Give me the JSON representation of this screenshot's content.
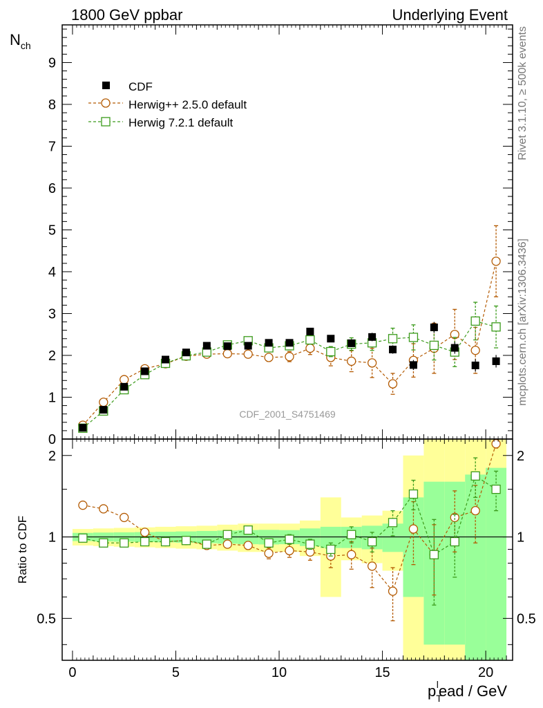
{
  "header": {
    "left_title": "1800 GeV ppbar",
    "right_title": "Underlying Event"
  },
  "side_labels": {
    "rivet": "Rivet 3.1.10, ≥ 500k events",
    "mcplots": "mcplots.cern.ch [arXiv:1306.3436]"
  },
  "watermark": "CDF_2001_S4751469",
  "axes": {
    "top_ylabel_main": "N",
    "top_ylabel_sub": "ch",
    "ratio_ylabel": "Ratio to CDF",
    "xlabel_p": "p",
    "xlabel_sub": "T",
    "xlabel_sup": "l",
    "xlabel_rest": "ead / GeV"
  },
  "colors": {
    "data": "#000000",
    "herwigpp": "#b35900",
    "herwig7": "#3a9a1a",
    "band_green": "#99ff99",
    "band_yellow": "#ffff99"
  },
  "chart_data": [
    {
      "type": "scatter",
      "panel": "main",
      "title": "Underlying Event",
      "xlabel": "pT lead / GeV",
      "ylabel": "Nch",
      "xlim": [
        -0.5,
        21.3
      ],
      "ylim": [
        0,
        9.9
      ],
      "xticks": [
        0,
        5,
        10,
        15,
        20
      ],
      "yticks": [
        1,
        2,
        3,
        4,
        5,
        6,
        7,
        8,
        9
      ],
      "x": [
        0.5,
        1.5,
        2.5,
        3.5,
        4.5,
        5.5,
        6.5,
        7.5,
        8.5,
        9.5,
        10.5,
        11.5,
        12.5,
        13.5,
        14.5,
        15.5,
        16.5,
        17.5,
        18.5,
        19.5,
        20.5
      ],
      "legend_position": "top-left",
      "series": [
        {
          "name": "CDF",
          "marker": "square-filled",
          "values": [
            0.27,
            0.7,
            1.25,
            1.62,
            1.9,
            2.07,
            2.23,
            2.22,
            2.23,
            2.3,
            2.3,
            2.57,
            2.4,
            2.29,
            2.44,
            2.14,
            1.77,
            2.67,
            2.18,
            1.76,
            1.86
          ],
          "errors": [
            0.02,
            0.04,
            0.05,
            0.05,
            0.05,
            0.05,
            0.06,
            0.06,
            0.06,
            0.07,
            0.07,
            0.08,
            0.08,
            0.09,
            0.1,
            0.1,
            0.12,
            0.13,
            0.14,
            0.15,
            0.15
          ]
        },
        {
          "name": "Herwig++ 2.5.0 default",
          "marker": "circle-open",
          "values": [
            0.33,
            0.88,
            1.42,
            1.68,
            1.8,
            1.98,
            2.03,
            2.04,
            2.03,
            1.95,
            1.97,
            2.17,
            1.95,
            1.86,
            1.82,
            1.32,
            1.88,
            2.17,
            2.5,
            2.12,
            4.25
          ],
          "errors": [
            0.01,
            0.02,
            0.03,
            0.04,
            0.05,
            0.05,
            0.06,
            0.07,
            0.08,
            0.09,
            0.12,
            0.15,
            0.2,
            0.25,
            0.35,
            0.25,
            0.4,
            0.6,
            0.6,
            0.55,
            0.85
          ]
        },
        {
          "name": "Herwig 7.2.1 default",
          "marker": "square-open",
          "values": [
            0.26,
            0.67,
            1.18,
            1.54,
            1.81,
            1.99,
            2.08,
            2.25,
            2.35,
            2.18,
            2.23,
            2.37,
            2.09,
            2.27,
            2.3,
            2.4,
            2.43,
            2.24,
            2.08,
            2.82,
            2.68
          ],
          "errors": [
            0.01,
            0.02,
            0.03,
            0.04,
            0.05,
            0.05,
            0.06,
            0.07,
            0.08,
            0.09,
            0.1,
            0.1,
            0.12,
            0.15,
            0.18,
            0.25,
            0.3,
            0.35,
            0.35,
            0.45,
            0.5
          ]
        }
      ]
    },
    {
      "type": "scatter",
      "panel": "ratio",
      "ylabel": "Ratio to CDF",
      "xlabel": "pT lead / GeV",
      "xlim": [
        -0.5,
        21.3
      ],
      "ylim": [
        0.35,
        2.3
      ],
      "yscale": "log",
      "xticks": [
        0,
        5,
        10,
        15,
        20
      ],
      "yticks": [
        0.5,
        1,
        2
      ],
      "ytick_labels": [
        "0.5",
        "1",
        "2"
      ],
      "reference_line": 1,
      "x": [
        0.5,
        1.5,
        2.5,
        3.5,
        4.5,
        5.5,
        6.5,
        7.5,
        8.5,
        9.5,
        10.5,
        11.5,
        12.5,
        13.5,
        14.5,
        15.5,
        16.5,
        17.5,
        18.5,
        19.5,
        20.5
      ],
      "bands": {
        "green_half_width": [
          0.035,
          0.038,
          0.04,
          0.042,
          0.045,
          0.048,
          0.052,
          0.056,
          0.06,
          0.062,
          0.06,
          0.075,
          0.09,
          0.09,
          0.1,
          0.12,
          0.4,
          0.6,
          0.6,
          0.7,
          0.8
        ],
        "yellow_half_width": [
          0.07,
          0.075,
          0.08,
          0.085,
          0.09,
          0.095,
          0.1,
          0.11,
          0.12,
          0.12,
          0.12,
          0.15,
          0.4,
          0.18,
          0.2,
          0.25,
          1.0,
          1.3,
          1.3,
          1.3,
          1.4
        ]
      },
      "series": [
        {
          "name": "Herwig++ 2.5.0 default",
          "values": [
            1.31,
            1.27,
            1.18,
            1.04,
            0.96,
            0.97,
            0.93,
            0.94,
            0.93,
            0.87,
            0.89,
            0.88,
            0.85,
            0.86,
            0.78,
            0.63,
            1.07,
            0.86,
            1.18,
            1.25,
            2.21
          ],
          "errors": [
            0.01,
            0.015,
            0.02,
            0.02,
            0.02,
            0.02,
            0.02,
            0.02,
            0.03,
            0.04,
            0.05,
            0.06,
            0.08,
            0.1,
            0.13,
            0.14,
            0.28,
            0.25,
            0.3,
            0.3,
            0.08
          ]
        },
        {
          "name": "Herwig 7.2.1 default",
          "values": [
            0.99,
            0.95,
            0.95,
            0.96,
            0.96,
            0.97,
            0.94,
            1.02,
            1.06,
            0.95,
            0.98,
            0.94,
            0.9,
            1.02,
            0.96,
            1.13,
            1.44,
            0.86,
            0.96,
            1.68,
            1.5
          ],
          "errors": [
            0.01,
            0.015,
            0.02,
            0.02,
            0.02,
            0.02,
            0.02,
            0.02,
            0.03,
            0.03,
            0.04,
            0.04,
            0.05,
            0.07,
            0.08,
            0.12,
            0.18,
            0.3,
            0.25,
            0.28,
            0.25
          ]
        }
      ]
    }
  ]
}
